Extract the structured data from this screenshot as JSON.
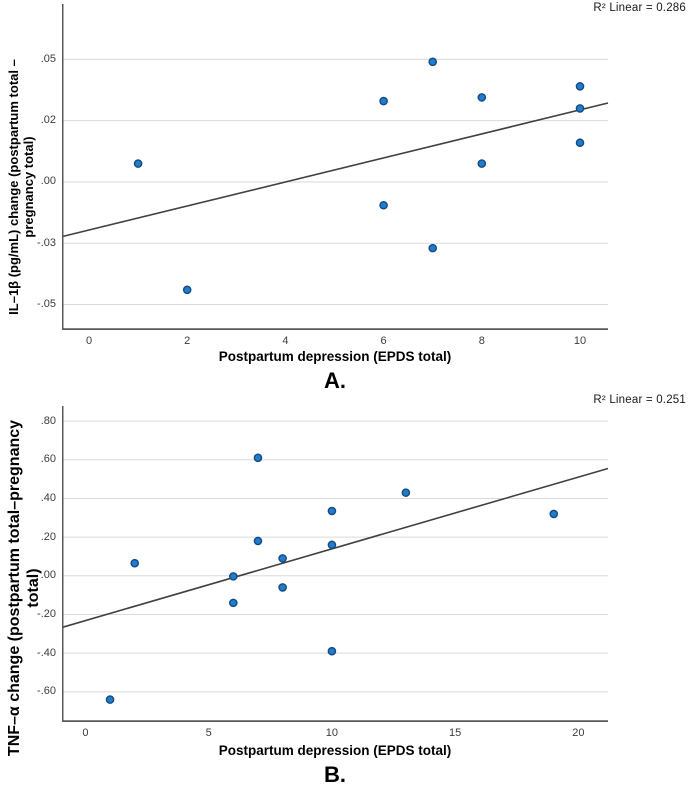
{
  "figure_title": "",
  "colors": {
    "background": "#ffffff",
    "marker_fill": "#1e7dd0",
    "marker_stroke": "#174a7c",
    "grid": "#dadada",
    "axis": "#58585a",
    "trendline": "#404040",
    "tick_text": "#3c3c3c",
    "title_text": "#000000"
  },
  "chart_data": [
    {
      "type": "scatter",
      "panel_label": "A.",
      "r2_label": "R² Linear = 0.286",
      "xlabel": "Postpartum depression (EPDS total)",
      "ylabel": "IL–1β (pg/mL) change (postpartum total –\npregnancy total)",
      "legend": "none",
      "grid": "horizontal",
      "xlim": [
        -0.55,
        10.57
      ],
      "ylim": [
        -0.0604,
        0.0726
      ],
      "x_ticks": [
        {
          "label": "0",
          "value": 0
        },
        {
          "label": "2",
          "value": 2
        },
        {
          "label": "4",
          "value": 4
        },
        {
          "label": "6",
          "value": 6
        },
        {
          "label": "8",
          "value": 8
        },
        {
          "label": "10",
          "value": 10
        }
      ],
      "y_ticks": [
        {
          "label": ".05",
          "value": 0.05
        },
        {
          "label": ".02",
          "value": 0.025
        },
        {
          "label": ".00",
          "value": 0
        },
        {
          "label": "-.03",
          "value": -0.025
        },
        {
          "label": "-.05",
          "value": -0.05
        }
      ],
      "points": [
        [
          1,
          0.0075
        ],
        [
          2,
          -0.044
        ],
        [
          6,
          0.033
        ],
        [
          6,
          -0.0095
        ],
        [
          7,
          0.049
        ],
        [
          7,
          -0.027
        ],
        [
          8,
          0.0345
        ],
        [
          8,
          0.0075
        ],
        [
          10,
          0.039
        ],
        [
          10,
          0.03
        ],
        [
          10,
          0.016
        ]
      ],
      "trendline": {
        "x1": -0.55,
        "y1": -0.0223,
        "x2": 10.57,
        "y2": 0.0322
      }
    },
    {
      "type": "scatter",
      "panel_label": "B.",
      "r2_label": "R² Linear = 0.251",
      "xlabel": "Postpartum depression (EPDS total)",
      "ylabel": "TNF–α change (postpartum total–pregnancy\ntotal)",
      "legend": "none",
      "grid": "horizontal",
      "xlim": [
        -0.95,
        21.2
      ],
      "ylim": [
        -0.756,
        0.878
      ],
      "x_ticks": [
        {
          "label": "0",
          "value": 0
        },
        {
          "label": "5",
          "value": 5
        },
        {
          "label": "10",
          "value": 10
        },
        {
          "label": "15",
          "value": 15
        },
        {
          "label": "20",
          "value": 20
        }
      ],
      "y_ticks": [
        {
          "label": ".80",
          "value": 0.8
        },
        {
          "label": ".60",
          "value": 0.6
        },
        {
          "label": ".40",
          "value": 0.4
        },
        {
          "label": ".20",
          "value": 0.2
        },
        {
          "label": ".00",
          "value": 0
        },
        {
          "label": "-.20",
          "value": -0.2
        },
        {
          "label": "-.40",
          "value": -0.4
        },
        {
          "label": "-.60",
          "value": -0.6
        }
      ],
      "points": [
        [
          1,
          -0.64
        ],
        [
          2,
          0.065
        ],
        [
          6,
          -0.003
        ],
        [
          6,
          -0.14
        ],
        [
          7,
          0.61
        ],
        [
          7,
          0.18
        ],
        [
          8,
          0.09
        ],
        [
          8,
          -0.06
        ],
        [
          10,
          0.335
        ],
        [
          10,
          0.16
        ],
        [
          10,
          -0.39
        ],
        [
          13,
          0.43
        ],
        [
          19,
          0.32
        ]
      ],
      "trendline": {
        "x1": -0.95,
        "y1": -0.267,
        "x2": 21.2,
        "y2": 0.555
      }
    }
  ]
}
